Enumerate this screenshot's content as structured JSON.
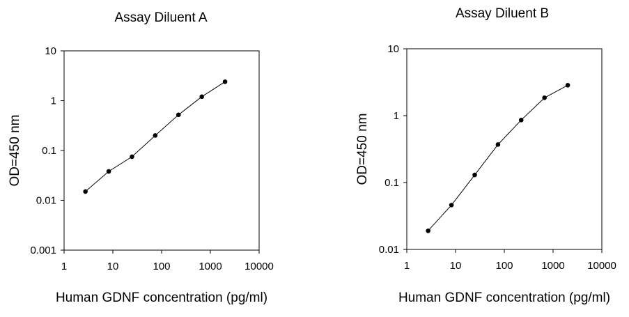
{
  "chart_data": [
    {
      "type": "line",
      "title": "Assay Diluent A",
      "xlabel": "Human GDNF concentration (pg/ml)",
      "ylabel": "OD=450 nm",
      "xscale": "log",
      "yscale": "log",
      "xlim": [
        1,
        10000
      ],
      "ylim": [
        0.001,
        10
      ],
      "xticks": [
        1,
        10,
        100,
        1000,
        10000
      ],
      "xtick_labels": [
        "1",
        "10",
        "100",
        "1000",
        "10000"
      ],
      "yticks": [
        0.001,
        0.01,
        0.1,
        1,
        10
      ],
      "ytick_labels": [
        "0.001",
        "0.01",
        "0.1",
        "1",
        "10"
      ],
      "grid": false,
      "series": [
        {
          "name": "Assay Diluent A",
          "x": [
            2.74,
            8.23,
            24.7,
            74.1,
            222,
            667,
            2000
          ],
          "y": [
            0.015,
            0.038,
            0.075,
            0.2,
            0.52,
            1.2,
            2.4
          ]
        }
      ]
    },
    {
      "type": "line",
      "title": "Assay Diluent B",
      "xlabel": "Human GDNF concentration (pg/ml)",
      "ylabel": "OD=450 nm",
      "xscale": "log",
      "yscale": "log",
      "xlim": [
        1,
        10000
      ],
      "ylim": [
        0.01,
        10
      ],
      "xticks": [
        1,
        10,
        100,
        1000,
        10000
      ],
      "xtick_labels": [
        "1",
        "10",
        "100",
        "1000",
        "10000"
      ],
      "yticks": [
        0.01,
        0.1,
        1,
        10
      ],
      "ytick_labels": [
        "0.01",
        "0.1",
        "1",
        "10"
      ],
      "grid": false,
      "series": [
        {
          "name": "Assay Diluent B",
          "x": [
            2.74,
            8.23,
            24.7,
            74.1,
            222,
            667,
            2000
          ],
          "y": [
            0.019,
            0.046,
            0.13,
            0.37,
            0.86,
            1.85,
            2.85
          ]
        }
      ]
    }
  ]
}
